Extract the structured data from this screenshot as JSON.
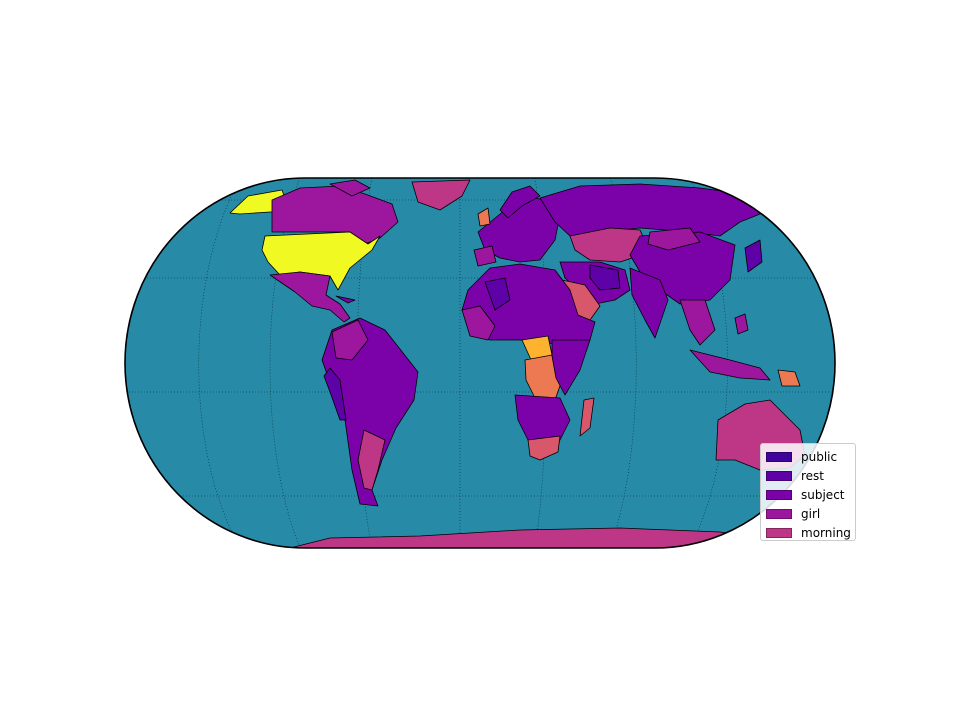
{
  "map": {
    "projection": "Eckert IV",
    "ocean_color": "#278BA8",
    "border_color": "#000000",
    "graticule": "dotted"
  },
  "legend": {
    "placement": "lower-right",
    "items": [
      {
        "label": "public",
        "color": "#3F049C"
      },
      {
        "label": "rest",
        "color": "#5E01A6"
      },
      {
        "label": "subject",
        "color": "#7B02A8"
      },
      {
        "label": "girl",
        "color": "#9C179E"
      },
      {
        "label": "morning",
        "color": "#BD3786"
      }
    ]
  },
  "extra_colors": {
    "highest": "#F0F921",
    "high": "#FDB32F",
    "mid_high": "#ED7953",
    "mid": "#D8576B"
  }
}
